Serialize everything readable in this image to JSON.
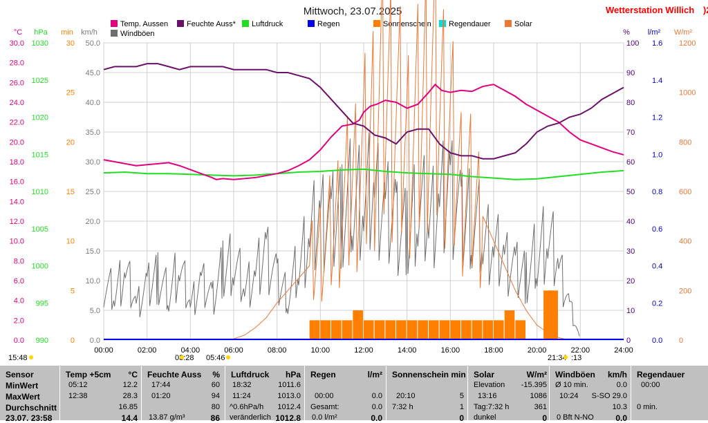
{
  "header": {
    "title": "Mittwoch, 23.07.2025",
    "station": "Wetterstation Willich",
    "station_suffix": ")2"
  },
  "colors": {
    "temp": "#e0007f",
    "humidity": "#6b0f6b",
    "pressure": "#22dd22",
    "rain": "#0000ee",
    "sunshine": "#ff8000",
    "rainduration": "#00dddd",
    "solar": "#ee7733",
    "gust": "#6e6e6e",
    "windspeed_axis": "#7a7a7a",
    "station": "#ff0000",
    "title": "#202020"
  },
  "chart_data": {
    "type": "line",
    "legend": [
      "Temp. Aussen",
      "Feuchte Auss*",
      "Luftdruck",
      "Regen",
      "Sonnenschein",
      "Regendauer",
      "Solar",
      "Windböen"
    ],
    "x_ticks": [
      "00:00",
      "02:00",
      "04:00",
      "06:00",
      "08:00",
      "10:00",
      "12:00",
      "14:00",
      "16:00",
      "18:00",
      "20:00",
      "22:00",
      "24:00"
    ],
    "axes": {
      "temp": {
        "unit": "°C",
        "range": [
          0,
          30
        ],
        "ticks": [
          "0.0",
          "2.0",
          "4.0",
          "6.0",
          "8.0",
          "10.0",
          "12.0",
          "14.0",
          "16.0",
          "18.0",
          "20.0",
          "22.0",
          "24.0",
          "26.0",
          "28.0",
          "30.0"
        ]
      },
      "pressure": {
        "unit": "hPa",
        "range": [
          990,
          1030
        ],
        "ticks": [
          "990",
          "995",
          "1000",
          "1005",
          "1010",
          "1015",
          "1020",
          "1025",
          "1030"
        ]
      },
      "sunshine_min": {
        "unit": "min",
        "range": [
          0,
          30
        ],
        "ticks": [
          "0",
          "5",
          "10",
          "15",
          "20",
          "25",
          "30"
        ]
      },
      "wind": {
        "unit": "km/h",
        "range": [
          0,
          50
        ],
        "ticks": [
          "0.0",
          "5.0",
          "10.0",
          "15.0",
          "20.0",
          "25.0",
          "30.0",
          "35.0",
          "40.0",
          "45.0",
          "50.0"
        ]
      },
      "humidity": {
        "unit": "%",
        "range": [
          0,
          100
        ],
        "ticks": [
          "0",
          "10",
          "20",
          "30",
          "40",
          "50",
          "60",
          "70",
          "80",
          "90",
          "100"
        ]
      },
      "rain": {
        "unit": "l/m²",
        "range": [
          0,
          1.6
        ],
        "ticks": [
          "0.0",
          "0.2",
          "0.4",
          "0.6",
          "0.8",
          "1.0",
          "1.2",
          "1.4",
          "1.6"
        ]
      },
      "solar": {
        "unit": "W/m²",
        "range": [
          0,
          1200
        ],
        "ticks": [
          "0",
          "200",
          "400",
          "600",
          "800",
          "1000",
          "1200"
        ]
      }
    },
    "series": [
      {
        "name": "Temp. Aussen",
        "axis": "temp",
        "x": [
          0,
          0.5,
          1,
          1.5,
          2,
          2.5,
          3,
          3.5,
          4,
          4.5,
          5,
          5.2,
          5.5,
          6,
          6.5,
          7,
          7.5,
          8,
          8.5,
          9,
          9.5,
          10,
          10.5,
          11,
          11.5,
          11.8,
          12,
          12.3,
          12.6,
          13,
          13.5,
          14,
          14.5,
          15,
          15.3,
          15.6,
          16,
          16.5,
          17,
          17.5,
          18,
          18.5,
          19,
          19.5,
          20,
          20.5,
          21,
          21.5,
          22,
          22.5,
          23,
          23.5,
          24
        ],
        "y": [
          18.2,
          18.0,
          17.8,
          17.6,
          17.7,
          17.8,
          17.9,
          17.6,
          17.2,
          16.8,
          16.4,
          16.2,
          16.3,
          16.2,
          16.3,
          16.4,
          16.6,
          16.8,
          17.1,
          17.6,
          18.2,
          19.2,
          20.5,
          21.6,
          21.8,
          22.2,
          23.0,
          23.6,
          23.8,
          24.2,
          24.0,
          23.4,
          23.8,
          25.0,
          25.8,
          25.2,
          25.0,
          25.2,
          25.1,
          25.6,
          25.8,
          25.2,
          24.6,
          23.8,
          23.2,
          22.6,
          22.0,
          21.0,
          20.2,
          19.8,
          19.4,
          19.0,
          18.7
        ]
      },
      {
        "name": "Feuchte Auss*",
        "axis": "humidity",
        "x": [
          0,
          0.5,
          1,
          1.5,
          2,
          2.5,
          3,
          3.5,
          4,
          4.5,
          5,
          5.5,
          6,
          6.5,
          7,
          7.5,
          8,
          8.5,
          9,
          9.5,
          10,
          10.5,
          11,
          11.5,
          12,
          12.5,
          13,
          13.5,
          14,
          14.5,
          15,
          15.5,
          16,
          16.5,
          17,
          17.5,
          18,
          18.5,
          19,
          19.5,
          20,
          20.5,
          21,
          21.5,
          22,
          22.5,
          23,
          23.5,
          24
        ],
        "y": [
          91,
          92,
          92,
          92,
          93,
          93,
          92,
          91,
          92,
          92,
          92,
          92,
          91,
          91,
          91,
          91,
          90,
          90,
          89,
          88,
          85,
          81,
          77,
          73,
          72,
          69,
          68,
          66,
          70,
          71,
          71,
          66,
          63,
          62,
          62,
          61,
          61,
          62,
          63,
          66,
          70,
          72,
          73,
          75,
          76,
          78,
          81,
          83,
          85
        ]
      },
      {
        "name": "Luftdruck",
        "axis": "pressure",
        "x": [
          0,
          1,
          2,
          3,
          4,
          5,
          6,
          7,
          8,
          9,
          10,
          11,
          12,
          13,
          14,
          15,
          16,
          17,
          18,
          19,
          20,
          21,
          22,
          23,
          24
        ],
        "y": [
          1012.5,
          1012.6,
          1012.4,
          1012.4,
          1012.3,
          1012.2,
          1012.1,
          1012.2,
          1012.4,
          1012.6,
          1012.7,
          1012.9,
          1013.0,
          1012.7,
          1012.5,
          1012.4,
          1012.3,
          1012.0,
          1011.8,
          1011.6,
          1011.7,
          1012.0,
          1012.3,
          1012.6,
          1012.8
        ]
      },
      {
        "name": "Sonnenschein",
        "axis": "sunshine_min",
        "x": [
          9.5,
          10.0,
          10.5,
          11.0,
          11.5,
          12.0,
          12.5,
          13.0,
          13.5,
          14.0,
          14.5,
          15.0,
          15.5,
          16.0,
          16.5,
          17.0,
          17.5,
          18.0,
          18.5,
          19.0,
          20.0,
          20.3,
          20.5,
          20.8
        ],
        "y": [
          2,
          2,
          2,
          2,
          3,
          2,
          2,
          2,
          2,
          2,
          2,
          2,
          2,
          2,
          2,
          2,
          2,
          2,
          3,
          2,
          0,
          5,
          5,
          0
        ]
      },
      {
        "name": "Solar",
        "axis": "solar",
        "x": [
          6,
          6.5,
          7,
          7.5,
          8,
          8.5,
          9,
          9.5,
          10,
          10.5,
          11,
          11.5,
          12,
          12.5,
          13,
          13.5,
          14,
          14.5,
          15,
          15.5,
          16,
          16.5,
          17,
          17.5,
          18,
          18.5,
          19,
          19.5,
          20,
          20.5,
          21,
          21.5
        ],
        "y": [
          5,
          20,
          50,
          90,
          150,
          200,
          250,
          300,
          380,
          450,
          550,
          650,
          750,
          900,
          1050,
          950,
          800,
          900,
          1100,
          1000,
          850,
          650,
          600,
          500,
          400,
          300,
          200,
          120,
          60,
          30,
          10,
          0
        ]
      },
      {
        "name": "Windböen",
        "axis": "wind",
        "x": [
          0,
          0.5,
          1,
          1.5,
          2,
          2.5,
          3,
          3.5,
          4,
          4.5,
          5,
          5.5,
          6,
          6.5,
          7,
          7.5,
          8,
          8.5,
          9,
          9.5,
          10,
          10.5,
          11,
          11.5,
          12,
          12.5,
          13,
          13.5,
          14,
          14.5,
          15,
          15.5,
          16,
          16.5,
          17,
          17.5,
          18,
          18.5,
          19,
          19.5,
          20,
          20.5,
          21,
          21.5,
          22
        ],
        "y": [
          10,
          8,
          12,
          6,
          9,
          11,
          8,
          13,
          6,
          10,
          7,
          12,
          14,
          9,
          11,
          15,
          10,
          8,
          13,
          18,
          21,
          20,
          22,
          25,
          24,
          26,
          22,
          20,
          18,
          24,
          21,
          23,
          26,
          20,
          22,
          18,
          16,
          14,
          12,
          11,
          15,
          18,
          13,
          6,
          0
        ]
      }
    ]
  },
  "markers": {
    "left_time": "15:48",
    "low1": "03:28",
    "low2": "05:46",
    "right1": "21:34",
    "right2": ":13"
  },
  "table": {
    "col0": {
      "h": "Sensor",
      "r1": "MinWert",
      "r2": "MaxWert",
      "r3": "Durchschnitt",
      "r4": "23.07. 23:58"
    },
    "col1": {
      "h": "Temp +5cm",
      "u": "°C",
      "r1t": "05:12",
      "r1v": "12.2",
      "r2t": "12:38",
      "r2v": "28.3",
      "r3v": "16.85",
      "r4v": "14.4"
    },
    "col2": {
      "h": "Feuchte Auss",
      "u": "%",
      "r1t": "17:44",
      "r1v": "60",
      "r2t": "01:20",
      "r2v": "94",
      "r3v": "80",
      "r4t": "13.87 g/m³",
      "r4v": "86"
    },
    "col3": {
      "h": "Luftdruck",
      "u": "hPa",
      "r1t": "18:32",
      "r1v": "1011.6",
      "r2t": "11:24",
      "r2v": "1013.0",
      "r3t": "^0.6hPa/h",
      "r3v": "1012.4",
      "r4t": "veränderlich",
      "r4v": "1012.8"
    },
    "col4": {
      "h": "Regen",
      "u": "l/m²",
      "r2t": "00:00",
      "r2v": "0.0",
      "r3t": "Gesamt:",
      "r3v": "0.0",
      "r4t": "0.0 l/m²",
      "r4v": "0.0"
    },
    "col5": {
      "h": "Sonnenschein min",
      "r2t": "20:10",
      "r2v": "5",
      "r3t": "7:32 h",
      "r3v": "1",
      "r4v": "0"
    },
    "col6": {
      "h": "Solar",
      "u": "W/m²",
      "r1t": "Elevation",
      "r1v": "-15.395",
      "r2t": "13:16",
      "r2v": "1086",
      "r3t": "Tag:7:32 h",
      "r3v": "361",
      "r4t": "dunkel",
      "r4v": "0"
    },
    "col7": {
      "h": "Windböen",
      "u": "km/h",
      "r1t": "Ø 10 min.",
      "r1v": "0.0",
      "r2t": "10:24",
      "r2v": "S-SO 29.0",
      "r3v": "10.3",
      "r4t": "0 Bft N-NO",
      "r4v": "0.0"
    },
    "col8": {
      "h": "Regendauer",
      "r1t": "00:00",
      "r2t": "0 min."
    }
  }
}
